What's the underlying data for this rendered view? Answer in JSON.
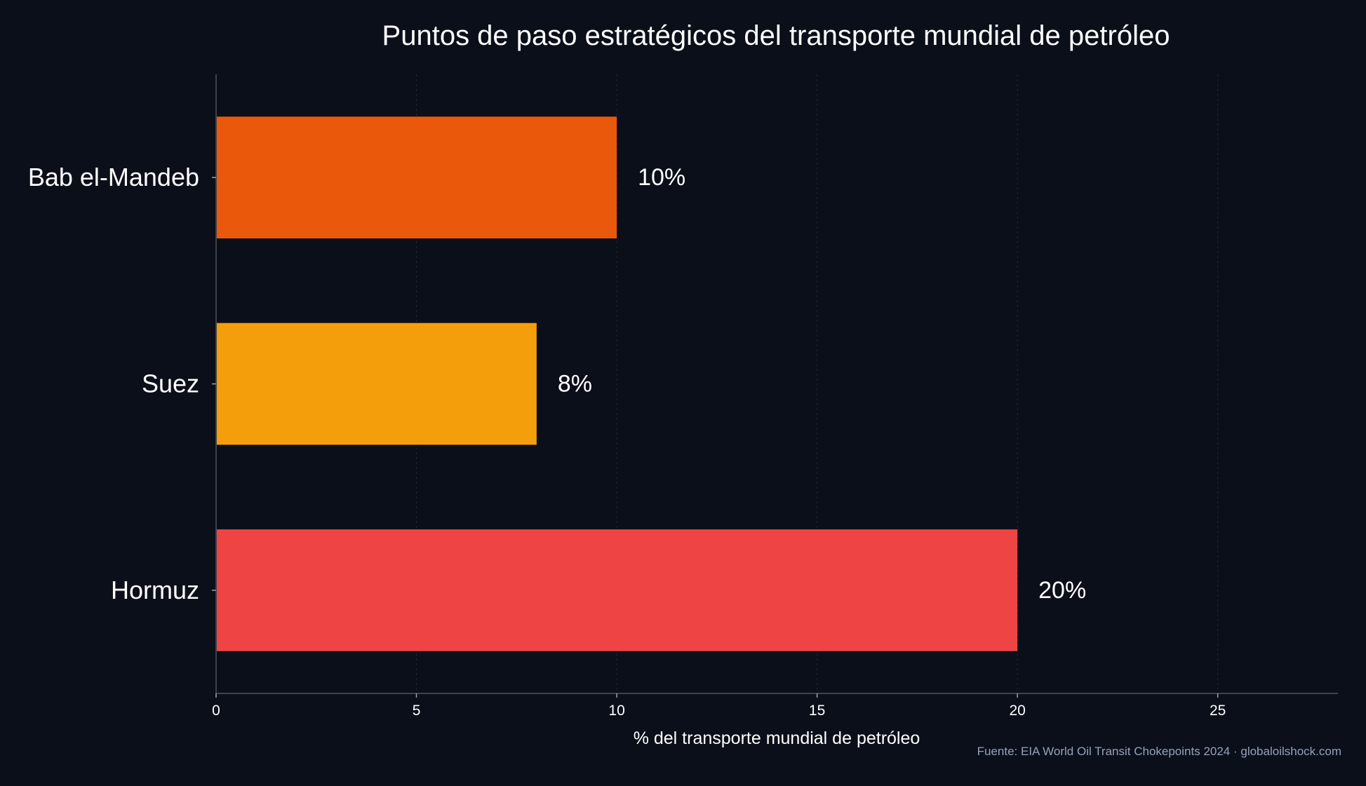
{
  "chart_data": {
    "type": "bar",
    "orientation": "horizontal",
    "title": "Puntos de paso estratégicos del transporte mundial de petróleo",
    "xlabel": "% del transporte mundial de petróleo",
    "ylabel": "",
    "xlim": [
      0,
      28
    ],
    "xticks": [
      0,
      5,
      10,
      15,
      20,
      25
    ],
    "xtick_labels": [
      "0",
      "5",
      "10",
      "15",
      "20",
      "25"
    ],
    "grid": "vertical dashed",
    "categories": [
      "Bab el-Mandeb",
      "Suez",
      "Hormuz"
    ],
    "values": [
      10,
      8,
      20
    ],
    "data_labels": [
      "10%",
      "8%",
      "20%"
    ],
    "colors": [
      "#ea580c",
      "#f59e0b",
      "#ef4444"
    ],
    "source": "Fuente: EIA World Oil Transit Chokepoints 2024 · globaloilshock.com"
  },
  "colors": {
    "background": "#0b0f1a",
    "text": "#ffffff",
    "axis": "#4b5563",
    "grid": "#1f2937",
    "source_text": "#94a3b8"
  }
}
